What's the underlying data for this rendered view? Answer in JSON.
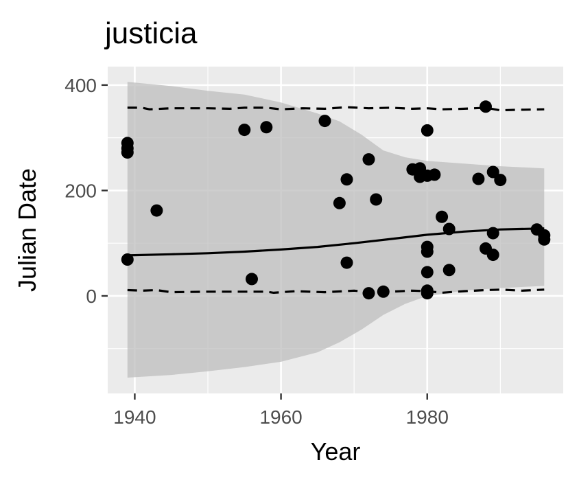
{
  "chart_data": {
    "type": "scatter",
    "title": "justicia",
    "xlabel": "Year",
    "ylabel": "Julian Date",
    "xlim": [
      1936.3,
      1998.6
    ],
    "ylim": [
      -185,
      435
    ],
    "xticks": [
      1940,
      1960,
      1980
    ],
    "xtick_labels": [
      "1940",
      "1960",
      "1980"
    ],
    "yticks": [
      0,
      200,
      400
    ],
    "ytick_labels": [
      "0",
      "200",
      "400"
    ],
    "grid": true,
    "background": "#ebebeb",
    "colors": {
      "points": "#000000",
      "ribbon": "#bebebe",
      "fit_line": "#000000",
      "quantile_line": "#000000"
    },
    "points": [
      {
        "x": 1939,
        "y": 290
      },
      {
        "x": 1939,
        "y": 280
      },
      {
        "x": 1939,
        "y": 272
      },
      {
        "x": 1939,
        "y": 69
      },
      {
        "x": 1943,
        "y": 162
      },
      {
        "x": 1955,
        "y": 315
      },
      {
        "x": 1956,
        "y": 32
      },
      {
        "x": 1958,
        "y": 320
      },
      {
        "x": 1966,
        "y": 332
      },
      {
        "x": 1968,
        "y": 176
      },
      {
        "x": 1969,
        "y": 221
      },
      {
        "x": 1969,
        "y": 63
      },
      {
        "x": 1972,
        "y": 259
      },
      {
        "x": 1972,
        "y": 5
      },
      {
        "x": 1973,
        "y": 183
      },
      {
        "x": 1974,
        "y": 8
      },
      {
        "x": 1978,
        "y": 240
      },
      {
        "x": 1979,
        "y": 242
      },
      {
        "x": 1979,
        "y": 226
      },
      {
        "x": 1980,
        "y": 314
      },
      {
        "x": 1980,
        "y": 228
      },
      {
        "x": 1980,
        "y": 93
      },
      {
        "x": 1980,
        "y": 84
      },
      {
        "x": 1980,
        "y": 45
      },
      {
        "x": 1980,
        "y": 10
      },
      {
        "x": 1980,
        "y": 5
      },
      {
        "x": 1981,
        "y": 230
      },
      {
        "x": 1982,
        "y": 150
      },
      {
        "x": 1983,
        "y": 127
      },
      {
        "x": 1983,
        "y": 49
      },
      {
        "x": 1987,
        "y": 222
      },
      {
        "x": 1988,
        "y": 359
      },
      {
        "x": 1988,
        "y": 90
      },
      {
        "x": 1989,
        "y": 235
      },
      {
        "x": 1989,
        "y": 119
      },
      {
        "x": 1989,
        "y": 78
      },
      {
        "x": 1990,
        "y": 220
      },
      {
        "x": 1995,
        "y": 126
      },
      {
        "x": 1996,
        "y": 115
      },
      {
        "x": 1996,
        "y": 107
      }
    ],
    "fit_line": {
      "x": [
        1939,
        1945,
        1950,
        1955,
        1960,
        1965,
        1970,
        1975,
        1980,
        1985,
        1990,
        1996
      ],
      "y": [
        77,
        79,
        81,
        84,
        88,
        93,
        100,
        108,
        116,
        122,
        126,
        128
      ]
    },
    "ribbon": {
      "x": [
        1939,
        1945,
        1950,
        1955,
        1960,
        1965,
        1968,
        1971,
        1974,
        1977,
        1980,
        1985,
        1990,
        1996
      ],
      "upper": [
        406,
        398,
        389,
        382,
        367,
        346,
        331,
        306,
        276,
        263,
        256,
        251,
        246,
        242
      ],
      "lower": [
        -155,
        -150,
        -143,
        -135,
        -125,
        -107,
        -88,
        -64,
        -36,
        -15,
        0,
        10,
        15,
        19
      ]
    },
    "upper_quantile_line": {
      "x": [
        1939,
        1941,
        1942,
        1945,
        1950,
        1953,
        1955,
        1958,
        1960,
        1963,
        1966,
        1969,
        1972,
        1975,
        1978,
        1980,
        1982,
        1985,
        1988,
        1990,
        1992,
        1996
      ],
      "y": [
        357,
        357,
        354,
        356,
        356,
        355,
        357,
        357,
        354,
        356,
        355,
        358,
        356,
        357,
        355,
        356,
        354,
        355,
        357,
        352,
        353,
        354
      ]
    },
    "lower_quantile_line": {
      "x": [
        1939,
        1941,
        1943,
        1945,
        1950,
        1955,
        1958,
        1959,
        1962,
        1966,
        1970,
        1972,
        1975,
        1978,
        1980,
        1982,
        1985,
        1988,
        1990,
        1993,
        1996
      ],
      "y": [
        11,
        10,
        11,
        7,
        8,
        8,
        8,
        6,
        9,
        7,
        10,
        7,
        8,
        10,
        9,
        6,
        9,
        11,
        12,
        10,
        12
      ]
    }
  }
}
